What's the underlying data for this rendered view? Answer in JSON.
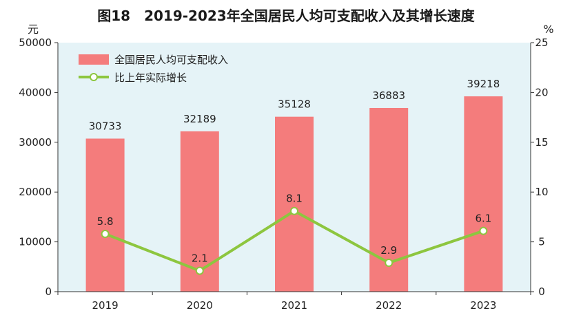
{
  "title": "图18　2019-2023年全国居民人均可支配收入及其增长速度",
  "left_unit": "元",
  "right_unit": "%",
  "colors": {
    "plot_background": "#e5f3f7",
    "bar": "#f47c7c",
    "line": "#8dc63f",
    "marker_fill": "#ffffff"
  },
  "legend": {
    "bar_label": "全国居民人均可支配收入",
    "line_label": "比上年实际增长"
  },
  "chart_data": {
    "type": "bar",
    "categories": [
      "2019",
      "2020",
      "2021",
      "2022",
      "2023"
    ],
    "series": [
      {
        "name": "全国居民人均可支配收入",
        "type": "bar",
        "axis": "left",
        "values": [
          30733,
          32189,
          35128,
          36883,
          39218
        ],
        "labels": [
          "30733",
          "32189",
          "35128",
          "36883",
          "39218"
        ]
      },
      {
        "name": "比上年实际增长",
        "type": "line",
        "axis": "right",
        "values": [
          5.8,
          2.1,
          8.1,
          2.9,
          6.1
        ],
        "labels": [
          "5.8",
          "2.1",
          "8.1",
          "2.9",
          "6.1"
        ]
      }
    ],
    "y_left": {
      "label": "元",
      "range": [
        0,
        50000
      ],
      "ticks": [
        "0",
        "10000",
        "20000",
        "30000",
        "40000",
        "50000"
      ]
    },
    "y_right": {
      "label": "%",
      "range": [
        0,
        25
      ],
      "ticks": [
        "0",
        "5",
        "10",
        "15",
        "20",
        "25"
      ]
    },
    "grid": false,
    "legend_position": "top-left"
  }
}
